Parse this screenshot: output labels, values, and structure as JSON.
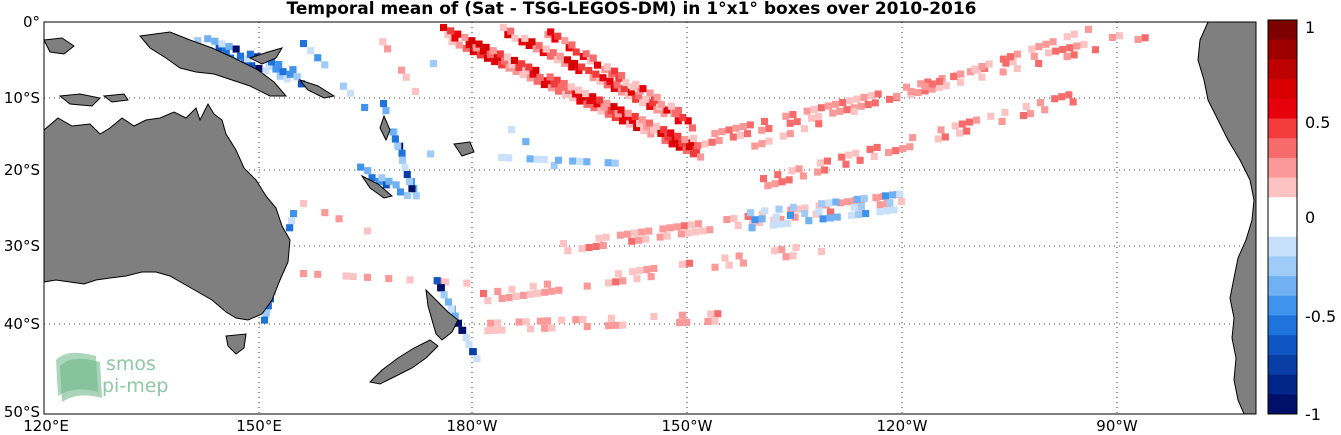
{
  "title": "Temporal mean of (Sat - TSG-LEGOS-DM) in 1°x1° boxes over 2010-2016",
  "colors": {
    "land": "#7f7f7f",
    "ocean": "#ffffff",
    "positive_strong": "#e8000b",
    "negative_strong": "#00207a",
    "logo": "#8fc8a4"
  },
  "axes": {
    "y_ticks": [
      "0°",
      "10°S",
      "20°S",
      "30°S",
      "40°S",
      "50°S"
    ],
    "x_ticks": [
      "120°E",
      "150°E",
      "180°W",
      "150°W",
      "120°W",
      "90°W"
    ],
    "grid": "dotted"
  },
  "colorbar": {
    "ticks": [
      "1",
      "0.5",
      "0",
      "-0.5",
      "-1"
    ],
    "range": [
      -1,
      1
    ],
    "levels": [
      "#7f0000",
      "#9e0000",
      "#bd0000",
      "#d80000",
      "#e8000b",
      "#f23b3b",
      "#f76b6b",
      "#fb9898",
      "#fdc3c3",
      "#ffffff",
      "#ffffff",
      "#c8e0fb",
      "#9ecbf7",
      "#6fb1f2",
      "#3f93ec",
      "#1f73dc",
      "#0f56c4",
      "#083ea6",
      "#02258a",
      "#000f6a"
    ]
  },
  "logo": {
    "line1": "smos",
    "line2": "pi-mep"
  }
}
